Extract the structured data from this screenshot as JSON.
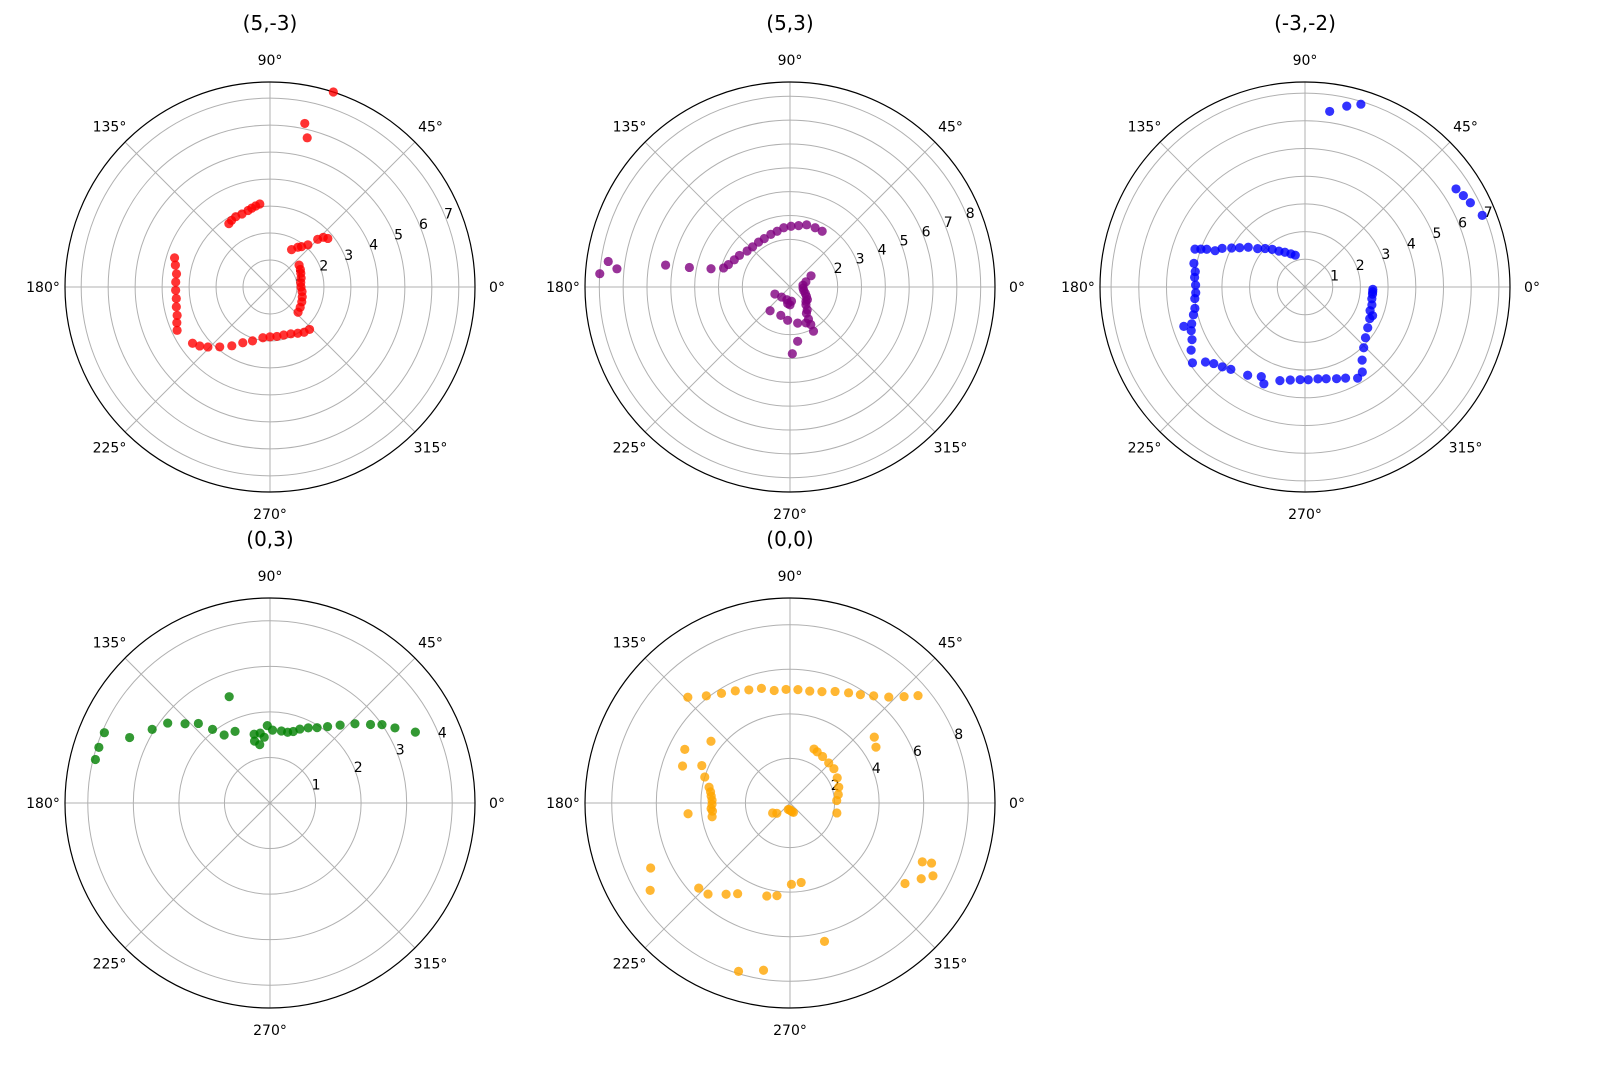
{
  "chart_data": [
    {
      "type": "scatter",
      "projection": "polar",
      "title": "(5,-3)",
      "color": "#ff0000",
      "rmax": 7.6,
      "radial_ticks": [
        1,
        2,
        3,
        4,
        5,
        6,
        7
      ],
      "angle_ticks": [
        "0°",
        "45°",
        "90°",
        "135°",
        "180°",
        "225°",
        "270°",
        "315°"
      ],
      "points": [
        [
          72,
          8.3
        ],
        [
          78,
          6.2
        ],
        [
          76,
          5.7
        ],
        [
          123,
          2.8
        ],
        [
          120,
          2.85
        ],
        [
          116,
          2.9
        ],
        [
          111,
          2.9
        ],
        [
          106,
          2.95
        ],
        [
          103,
          3.0
        ],
        [
          100,
          3.05
        ],
        [
          97,
          3.1
        ],
        [
          60,
          1.6
        ],
        [
          55,
          1.8
        ],
        [
          52,
          1.9
        ],
        [
          48,
          2.1
        ],
        [
          45,
          2.5
        ],
        [
          43,
          2.7
        ],
        [
          40,
          2.8
        ],
        [
          37,
          1.35
        ],
        [
          30,
          1.3
        ],
        [
          24,
          1.25
        ],
        [
          16,
          1.2
        ],
        [
          8,
          1.15
        ],
        [
          0,
          1.15
        ],
        [
          352,
          1.2
        ],
        [
          343,
          1.25
        ],
        [
          335,
          1.3
        ],
        [
          326,
          1.35
        ],
        [
          318,
          1.4
        ],
        [
          163,
          3.7
        ],
        [
          167,
          3.6
        ],
        [
          172,
          3.5
        ],
        [
          177,
          3.5
        ],
        [
          182,
          3.5
        ],
        [
          187,
          3.5
        ],
        [
          192,
          3.55
        ],
        [
          197,
          3.6
        ],
        [
          201,
          3.7
        ],
        [
          205,
          3.8
        ],
        [
          216,
          3.55
        ],
        [
          220,
          3.4
        ],
        [
          224,
          3.2
        ],
        [
          230,
          2.9
        ],
        [
          237,
          2.6
        ],
        [
          244,
          2.3
        ],
        [
          252,
          2.1
        ],
        [
          262,
          1.9
        ],
        [
          270,
          1.85
        ],
        [
          278,
          1.85
        ],
        [
          286,
          1.85
        ],
        [
          294,
          1.9
        ],
        [
          301,
          2.0
        ],
        [
          307,
          2.1
        ],
        [
          313,
          2.15
        ]
      ]
    },
    {
      "type": "scatter",
      "projection": "polar",
      "title": "(5,3)",
      "color": "#800080",
      "rmax": 8.6,
      "radial_ticks": [
        2,
        3,
        4,
        5,
        6,
        7,
        8
      ],
      "angle_ticks": [
        "0°",
        "45°",
        "90°",
        "135°",
        "180°",
        "225°",
        "270°",
        "315°"
      ],
      "points": [
        [
          176,
          8.0
        ],
        [
          172,
          7.7
        ],
        [
          174,
          7.3
        ],
        [
          170,
          5.3
        ],
        [
          169,
          4.3
        ],
        [
          167,
          3.4
        ],
        [
          164,
          2.9
        ],
        [
          160,
          2.75
        ],
        [
          154,
          2.6
        ],
        [
          148,
          2.5
        ],
        [
          140,
          2.35
        ],
        [
          133,
          2.3
        ],
        [
          125,
          2.3
        ],
        [
          118,
          2.3
        ],
        [
          110,
          2.35
        ],
        [
          103,
          2.4
        ],
        [
          96,
          2.5
        ],
        [
          89,
          2.55
        ],
        [
          82,
          2.6
        ],
        [
          75,
          2.7
        ],
        [
          67,
          2.7
        ],
        [
          60,
          2.7
        ],
        [
          28,
          1.0
        ],
        [
          18,
          0.7
        ],
        [
          8,
          0.55
        ],
        [
          355,
          0.55
        ],
        [
          345,
          0.6
        ],
        [
          337,
          0.7
        ],
        [
          330,
          0.8
        ],
        [
          324,
          0.9
        ],
        [
          318,
          0.9
        ],
        [
          312,
          1.0
        ],
        [
          307,
          1.2
        ],
        [
          302,
          1.3
        ],
        [
          300,
          1.55
        ],
        [
          299,
          1.8
        ],
        [
          298,
          2.1
        ],
        [
          256,
          0.55
        ],
        [
          262,
          0.7
        ],
        [
          270,
          0.75
        ],
        [
          276,
          0.6
        ],
        [
          230,
          0.55
        ],
        [
          205,
          0.7
        ],
        [
          230,
          1.3
        ],
        [
          252,
          1.25
        ],
        [
          266,
          1.4
        ],
        [
          282,
          1.55
        ],
        [
          294,
          1.65
        ],
        [
          278,
          2.3
        ],
        [
          272,
          2.8
        ]
      ]
    },
    {
      "type": "scatter",
      "projection": "polar",
      "title": "(-3,-2)",
      "color": "#0000ff",
      "rmax": 7.4,
      "radial_ticks": [
        1,
        2,
        3,
        4,
        5,
        6,
        7
      ],
      "angle_ticks": [
        "0°",
        "45°",
        "90°",
        "135°",
        "180°",
        "225°",
        "270°",
        "315°"
      ],
      "points": [
        [
          82,
          6.4
        ],
        [
          77,
          6.7
        ],
        [
          73,
          6.9
        ],
        [
          33,
          6.5
        ],
        [
          30,
          6.6
        ],
        [
          27,
          6.7
        ],
        [
          22,
          6.9
        ],
        [
          107,
          1.2
        ],
        [
          113,
          1.3
        ],
        [
          120,
          1.45
        ],
        [
          126,
          1.6
        ],
        [
          131,
          1.8
        ],
        [
          136,
          2.0
        ],
        [
          141,
          2.2
        ],
        [
          145,
          2.5
        ],
        [
          149,
          2.75
        ],
        [
          152,
          3.0
        ],
        [
          155,
          3.3
        ],
        [
          158,
          3.5
        ],
        [
          159,
          3.8
        ],
        [
          160,
          4.0
        ],
        [
          161,
          4.2
        ],
        [
          168,
          4.1
        ],
        [
          172,
          4.0
        ],
        [
          175,
          4.0
        ],
        [
          179,
          3.95
        ],
        [
          183,
          3.95
        ],
        [
          186,
          4.0
        ],
        [
          191,
          4.05
        ],
        [
          194,
          4.15
        ],
        [
          198,
          4.3
        ],
        [
          201,
          4.4
        ],
        [
          205,
          4.5
        ],
        [
          209,
          4.7
        ],
        [
          214,
          4.9
        ],
        [
          198,
          4.6
        ],
        [
          217,
          4.5
        ],
        [
          220,
          4.3
        ],
        [
          224,
          4.15
        ],
        [
          228,
          4.0
        ],
        [
          237,
          3.8
        ],
        [
          244,
          3.6
        ],
        [
          247,
          3.8
        ],
        [
          255,
          3.5
        ],
        [
          261,
          3.4
        ],
        [
          267,
          3.35
        ],
        [
          272,
          3.35
        ],
        [
          278,
          3.35
        ],
        [
          283,
          3.4
        ],
        [
          289,
          3.5
        ],
        [
          294,
          3.6
        ],
        [
          300,
          3.8
        ],
        [
          304,
          3.7
        ],
        [
          308,
          3.35
        ],
        [
          314,
          3.05
        ],
        [
          320,
          2.85
        ],
        [
          327,
          2.7
        ],
        [
          334,
          2.6
        ],
        [
          340,
          2.5
        ],
        [
          345,
          2.5
        ],
        [
          350,
          2.45
        ],
        [
          354,
          2.45
        ],
        [
          356,
          2.45
        ],
        [
          358,
          2.45
        ],
        [
          337,
          2.65
        ]
      ]
    },
    {
      "type": "scatter",
      "projection": "polar",
      "title": "(0,3)",
      "color": "#008000",
      "rmax": 4.5,
      "radial_ticks": [
        1,
        2,
        3,
        4
      ],
      "angle_ticks": [
        "0°",
        "45°",
        "90°",
        "135°",
        "180°",
        "225°",
        "270°",
        "315°"
      ],
      "points": [
        [
          111,
          2.5
        ],
        [
          103,
          1.55
        ],
        [
          100,
          1.3
        ],
        [
          98,
          1.55
        ],
        [
          92,
          1.7
        ],
        [
          88,
          1.6
        ],
        [
          81,
          1.6
        ],
        [
          76,
          1.6
        ],
        [
          72,
          1.65
        ],
        [
          68,
          1.75
        ],
        [
          63,
          1.85
        ],
        [
          58,
          1.95
        ],
        [
          53,
          2.1
        ],
        [
          48,
          2.3
        ],
        [
          43,
          2.55
        ],
        [
          38,
          2.8
        ],
        [
          35,
          3.0
        ],
        [
          31,
          3.2
        ],
        [
          26,
          3.55
        ],
        [
          104,
          1.4
        ],
        [
          95,
          1.45
        ],
        [
          116,
          1.75
        ],
        [
          124,
          1.8
        ],
        [
          128,
          2.05
        ],
        [
          132,
          2.35
        ],
        [
          137,
          2.55
        ],
        [
          142,
          2.85
        ],
        [
          148,
          3.05
        ],
        [
          155,
          3.4
        ],
        [
          157,
          3.95
        ],
        [
          162,
          3.95
        ],
        [
          166,
          3.95
        ]
      ]
    },
    {
      "type": "scatter",
      "projection": "polar",
      "title": "(0,0)",
      "color": "#ffa500",
      "rmax": 9.2,
      "radial_ticks": [
        2,
        4,
        6,
        8
      ],
      "angle_ticks": [
        "0°",
        "45°",
        "90°",
        "135°",
        "180°",
        "225°",
        "270°",
        "315°"
      ],
      "points": [
        [
          134,
          6.6
        ],
        [
          128,
          6.1
        ],
        [
          122,
          5.8
        ],
        [
          116,
          5.6
        ],
        [
          110,
          5.4
        ],
        [
          104,
          5.3
        ],
        [
          98,
          5.1
        ],
        [
          92,
          5.1
        ],
        [
          86,
          5.1
        ],
        [
          80,
          5.1
        ],
        [
          74,
          5.2
        ],
        [
          68,
          5.4
        ],
        [
          62,
          5.6
        ],
        [
          57,
          5.8
        ],
        [
          52,
          6.1
        ],
        [
          47,
          6.5
        ],
        [
          43,
          7.0
        ],
        [
          40,
          7.5
        ],
        [
          66,
          2.65
        ],
        [
          62,
          2.6
        ],
        [
          55,
          2.55
        ],
        [
          46,
          2.5
        ],
        [
          38,
          2.5
        ],
        [
          28,
          2.4
        ],
        [
          18,
          2.3
        ],
        [
          10,
          2.2
        ],
        [
          3,
          2.1
        ],
        [
          348,
          2.15
        ],
        [
          38,
          4.8
        ],
        [
          33,
          4.6
        ],
        [
          142,
          4.5
        ],
        [
          157,
          4.3
        ],
        [
          163,
          4.0
        ],
        [
          169,
          3.7
        ],
        [
          172,
          3.6
        ],
        [
          175,
          3.55
        ],
        [
          178,
          3.5
        ],
        [
          181,
          3.5
        ],
        [
          184,
          3.55
        ],
        [
          186,
          3.5
        ],
        [
          190,
          3.55
        ],
        [
          186,
          4.6
        ],
        [
          161,
          5.1
        ],
        [
          153,
          5.3
        ],
        [
          210,
          0.9
        ],
        [
          218,
          0.75
        ],
        [
          255,
          0.3
        ],
        [
          268,
          0.3
        ],
        [
          275,
          0.35
        ],
        [
          283,
          0.4
        ],
        [
          290,
          0.45
        ],
        [
          212,
          7.4
        ],
        [
          205,
          6.9
        ],
        [
          223,
          5.6
        ],
        [
          228,
          5.5
        ],
        [
          235,
          5.0
        ],
        [
          240,
          4.7
        ],
        [
          256,
          4.3
        ],
        [
          262,
          4.2
        ],
        [
          271,
          3.65
        ],
        [
          278,
          3.6
        ],
        [
          284,
          6.4
        ],
        [
          253,
          7.9
        ],
        [
          261,
          7.6
        ],
        [
          325,
          6.3
        ],
        [
          330,
          6.8
        ],
        [
          333,
          7.2
        ],
        [
          336,
          6.5
        ],
        [
          337,
          6.9
        ]
      ]
    }
  ]
}
